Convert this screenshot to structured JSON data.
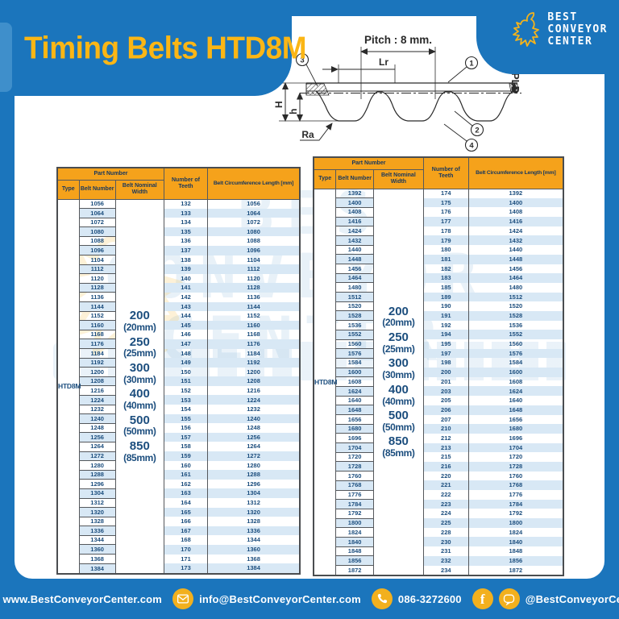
{
  "page": {
    "title": "Timing Belts HTD8M"
  },
  "logo": {
    "lines": [
      "BEST",
      "CONVEYOR",
      "CENTER"
    ]
  },
  "colors": {
    "blue": "#1B75BC",
    "title_yellow": "#FBB615",
    "header_orange": "#F5A21B",
    "navy_text": "#1C4E7E",
    "row_stripe": "#D8E8F5",
    "icon_yellow": "#F2B01E"
  },
  "diagram": {
    "pitch_label": "Pitch : 8 mm.",
    "lr_label": "Lr",
    "pld_label": "PLD",
    "height_label": "H",
    "tooth_height_label": "h",
    "ra_label": "Ra",
    "callouts": [
      "1",
      "2",
      "3",
      "4"
    ]
  },
  "watermark": {
    "lines": [
      "BEST",
      "CONVEYOR",
      "CENTER"
    ]
  },
  "table_header": {
    "part_number": "Part Number",
    "type": "Type",
    "belt_number": "Belt Number",
    "width": "Belt Nominal Width",
    "teeth": "Number of Teeth",
    "length": "Belt Circumference Length [mm]"
  },
  "tables": [
    {
      "type_value": "HTD8M",
      "widths": [
        {
          "size": "200",
          "mm": "(20mm)"
        },
        {
          "size": "250",
          "mm": "(25mm)"
        },
        {
          "size": "300",
          "mm": "(30mm)"
        },
        {
          "size": "400",
          "mm": "(40mm)"
        },
        {
          "size": "500",
          "mm": "(50mm)"
        },
        {
          "size": "850",
          "mm": "(85mm)"
        }
      ],
      "rows": [
        [
          "1056",
          "132",
          "1056"
        ],
        [
          "1064",
          "133",
          "1064"
        ],
        [
          "1072",
          "134",
          "1072"
        ],
        [
          "1080",
          "135",
          "1080"
        ],
        [
          "1088",
          "136",
          "1088"
        ],
        [
          "1096",
          "137",
          "1096"
        ],
        [
          "1104",
          "138",
          "1104"
        ],
        [
          "1112",
          "139",
          "1112"
        ],
        [
          "1120",
          "140",
          "1120"
        ],
        [
          "1128",
          "141",
          "1128"
        ],
        [
          "1136",
          "142",
          "1136"
        ],
        [
          "1144",
          "143",
          "1144"
        ],
        [
          "1152",
          "144",
          "1152"
        ],
        [
          "1160",
          "145",
          "1160"
        ],
        [
          "1168",
          "146",
          "1168"
        ],
        [
          "1176",
          "147",
          "1176"
        ],
        [
          "1184",
          "148",
          "1184"
        ],
        [
          "1192",
          "149",
          "1192"
        ],
        [
          "1200",
          "150",
          "1200"
        ],
        [
          "1208",
          "151",
          "1208"
        ],
        [
          "1216",
          "152",
          "1216"
        ],
        [
          "1224",
          "153",
          "1224"
        ],
        [
          "1232",
          "154",
          "1232"
        ],
        [
          "1240",
          "155",
          "1240"
        ],
        [
          "1248",
          "156",
          "1248"
        ],
        [
          "1256",
          "157",
          "1256"
        ],
        [
          "1264",
          "158",
          "1264"
        ],
        [
          "1272",
          "159",
          "1272"
        ],
        [
          "1280",
          "160",
          "1280"
        ],
        [
          "1288",
          "161",
          "1288"
        ],
        [
          "1296",
          "162",
          "1296"
        ],
        [
          "1304",
          "163",
          "1304"
        ],
        [
          "1312",
          "164",
          "1312"
        ],
        [
          "1320",
          "165",
          "1320"
        ],
        [
          "1328",
          "166",
          "1328"
        ],
        [
          "1336",
          "167",
          "1336"
        ],
        [
          "1344",
          "168",
          "1344"
        ],
        [
          "1360",
          "170",
          "1360"
        ],
        [
          "1368",
          "171",
          "1368"
        ],
        [
          "1384",
          "173",
          "1384"
        ]
      ]
    },
    {
      "type_value": "HTD8M",
      "widths": [
        {
          "size": "200",
          "mm": "(20mm)"
        },
        {
          "size": "250",
          "mm": "(25mm)"
        },
        {
          "size": "300",
          "mm": "(30mm)"
        },
        {
          "size": "400",
          "mm": "(40mm)"
        },
        {
          "size": "500",
          "mm": "(50mm)"
        },
        {
          "size": "850",
          "mm": "(85mm)"
        }
      ],
      "rows": [
        [
          "1392",
          "174",
          "1392"
        ],
        [
          "1400",
          "175",
          "1400"
        ],
        [
          "1408",
          "176",
          "1408"
        ],
        [
          "1416",
          "177",
          "1416"
        ],
        [
          "1424",
          "178",
          "1424"
        ],
        [
          "1432",
          "179",
          "1432"
        ],
        [
          "1440",
          "180",
          "1440"
        ],
        [
          "1448",
          "181",
          "1448"
        ],
        [
          "1456",
          "182",
          "1456"
        ],
        [
          "1464",
          "183",
          "1464"
        ],
        [
          "1480",
          "185",
          "1480"
        ],
        [
          "1512",
          "189",
          "1512"
        ],
        [
          "1520",
          "190",
          "1520"
        ],
        [
          "1528",
          "191",
          "1528"
        ],
        [
          "1536",
          "192",
          "1536"
        ],
        [
          "1552",
          "194",
          "1552"
        ],
        [
          "1560",
          "195",
          "1560"
        ],
        [
          "1576",
          "197",
          "1576"
        ],
        [
          "1584",
          "198",
          "1584"
        ],
        [
          "1600",
          "200",
          "1600"
        ],
        [
          "1608",
          "201",
          "1608"
        ],
        [
          "1624",
          "203",
          "1624"
        ],
        [
          "1640",
          "205",
          "1640"
        ],
        [
          "1648",
          "206",
          "1648"
        ],
        [
          "1656",
          "207",
          "1656"
        ],
        [
          "1680",
          "210",
          "1680"
        ],
        [
          "1696",
          "212",
          "1696"
        ],
        [
          "1704",
          "213",
          "1704"
        ],
        [
          "1720",
          "215",
          "1720"
        ],
        [
          "1728",
          "216",
          "1728"
        ],
        [
          "1760",
          "220",
          "1760"
        ],
        [
          "1768",
          "221",
          "1768"
        ],
        [
          "1776",
          "222",
          "1776"
        ],
        [
          "1784",
          "223",
          "1784"
        ],
        [
          "1792",
          "224",
          "1792"
        ],
        [
          "1800",
          "225",
          "1800"
        ],
        [
          "1824",
          "228",
          "1824"
        ],
        [
          "1840",
          "230",
          "1840"
        ],
        [
          "1848",
          "231",
          "1848"
        ],
        [
          "1856",
          "232",
          "1856"
        ],
        [
          "1872",
          "234",
          "1872"
        ]
      ]
    }
  ],
  "footer": {
    "items": [
      {
        "icon": "globe-icon",
        "text": "www.BestConveyorCenter.com"
      },
      {
        "icon": "mail-icon",
        "text": "info@BestConveyorCenter.com"
      },
      {
        "icon": "phone-icon",
        "text": "086-3272600"
      },
      {
        "icon": "facebook-icon line-icon",
        "text": "@BestConveyorCenter"
      }
    ]
  }
}
